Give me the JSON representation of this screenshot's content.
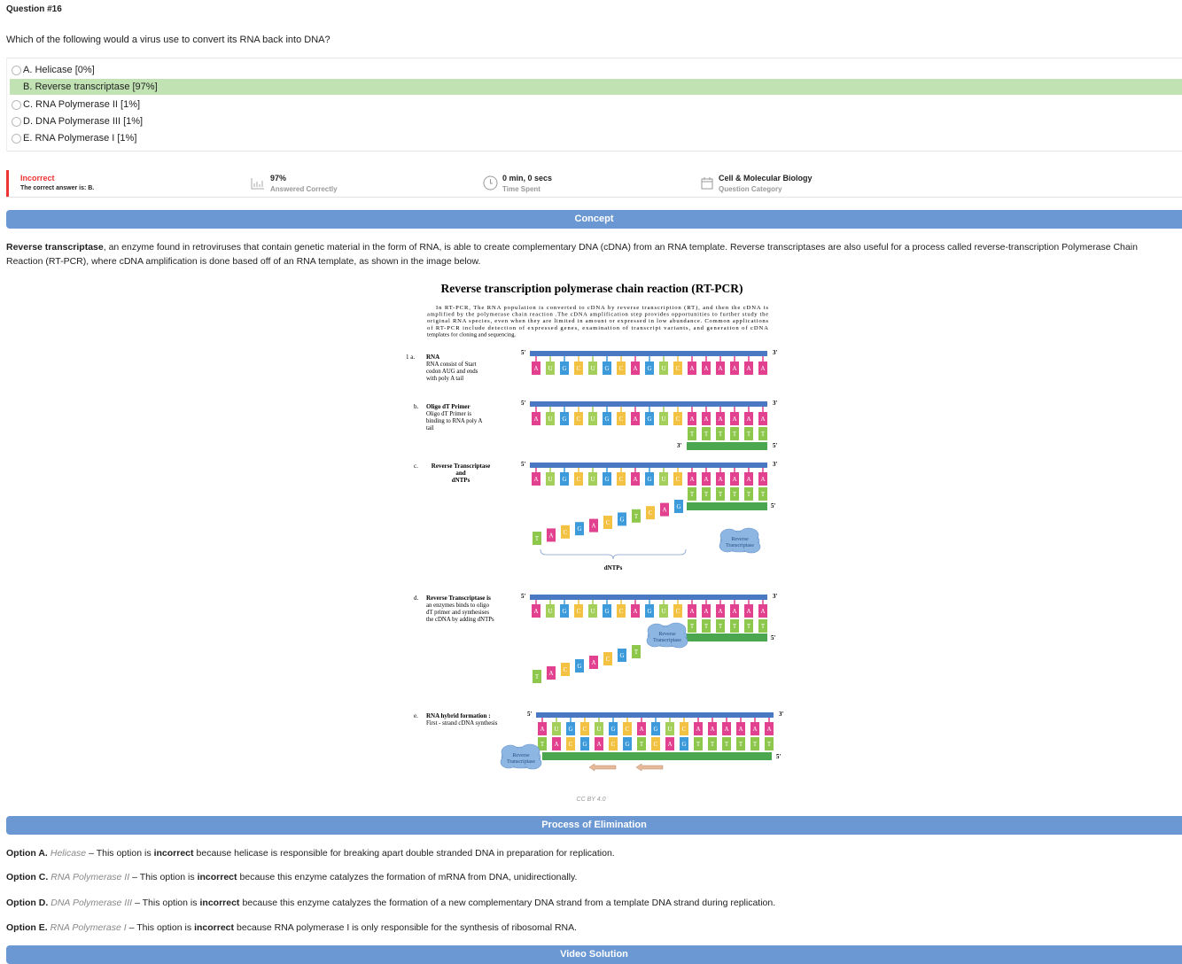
{
  "question": {
    "number": "Question #16",
    "text": "Which of the following would a virus use to convert its RNA back into DNA?",
    "options": [
      {
        "text": "A. Helicase [0%]",
        "correct": false
      },
      {
        "text": "B. Reverse transcriptase [97%]",
        "correct": true
      },
      {
        "text": "C. RNA Polymerase II [1%]",
        "correct": false
      },
      {
        "text": "D. DNA Polymerase III [1%]",
        "correct": false
      },
      {
        "text": "E. RNA Polymerase I [1%]",
        "correct": false
      }
    ]
  },
  "stats": {
    "status": "Incorrect",
    "answer": "The correct answer is: B.",
    "percent": "97%",
    "percent_label": "Answered Correctly",
    "time": "0 min, 0 secs",
    "time_label": "Time Spent",
    "category": "Cell & Molecular Biology",
    "category_label": "Question Category"
  },
  "concept": {
    "heading": "Concept",
    "lead": "Reverse transcriptase",
    "text": ", an enzyme found in retroviruses that contain genetic material in the form of RNA, is able to create complementary DNA (cDNA) from an RNA template. Reverse transcriptases are also useful for a process called reverse-transcription Polymerase Chain Reaction (RT-PCR), where cDNA amplification is done based off of an RNA template, as shown in the image below."
  },
  "figure": {
    "title": "Reverse transcription polymerase chain reaction (RT-PCR)",
    "paragraph": [
      "In RT-PCR,  The RNA population is converted to cDNA by reverse transcription (RT), and then the cDNA is",
      "amplified by the polymerase chain reaction .The cDNA amplification step provides opportunities to further study the",
      "original RNA species, even when they are limited in amount or expressed in low abundance. Common applications",
      "of RT-PCR include detection of  expressed genes, examination of transcript variants, and generation of cDNA",
      "templates for cloning and sequencing."
    ],
    "steps": [
      {
        "num": "1 a.",
        "heading": [
          "RNA"
        ],
        "body": [
          "RNA consist of Start",
          "codon AUG and ends",
          "with poly A tail"
        ]
      },
      {
        "num": "b.",
        "heading": [
          "Oligo dT Primer"
        ],
        "body": [
          "Oligo dT Primer is",
          "binding to RNA poly A",
          "tail"
        ]
      },
      {
        "num": "c.",
        "heading": [
          "Reverse Transcriptase",
          "and",
          "dNTPs"
        ]
      },
      {
        "num": "d.",
        "heading": [
          "Reverse Transcriptase is"
        ],
        "body": [
          "an enzymes binds to oligo",
          "dT primer and synthesises",
          "the cDNA by adding dNTPs"
        ]
      },
      {
        "num": "e.",
        "heading": [
          "RNA hybrid formation :"
        ],
        "body": [
          "First - strand cDNA synthesis"
        ]
      }
    ],
    "five_prime": "5'",
    "three_prime": "3'",
    "rna": [
      "A",
      "U",
      "G",
      "C",
      "U",
      "G",
      "C",
      "A",
      "G",
      "U",
      "C",
      "A",
      "A",
      "A",
      "A",
      "A",
      "A"
    ],
    "primer": [
      "T",
      "T",
      "T",
      "T",
      "T",
      "T"
    ],
    "cdna": [
      "T",
      "A",
      "C",
      "G",
      "A",
      "C",
      "G",
      "T",
      "C",
      "A",
      "G"
    ],
    "dntps_label": "dNTPs",
    "enzyme": [
      "Reverse",
      "Transcriptase"
    ],
    "colors": {
      "A": "#e2418f",
      "U": "#a3cf5a",
      "G": "#3d9bdc",
      "C": "#f3c243",
      "T": "#8dc74c"
    },
    "caption": "CC BY 4.0"
  },
  "elimination": {
    "heading": "Process of Elimination",
    "items": [
      {
        "label": "Option A.",
        "name": "Helicase",
        "before": "– This option is",
        "emphasis": "incorrect",
        "after": "because helicase is responsible for breaking apart double stranded DNA in preparation for replication."
      },
      {
        "label": "Option C.",
        "name": "RNA Polymerase II",
        "before": "– This option is",
        "emphasis": "incorrect",
        "after": "because this enzyme catalyzes the formation of mRNA from DNA, unidirectionally."
      },
      {
        "label": "Option D.",
        "name": "DNA Polymerase III",
        "before": "– This option is",
        "emphasis": "incorrect",
        "after": "because this enzyme catalyzes the formation of a new complementary DNA strand from a template DNA strand during replication."
      },
      {
        "label": "Option E.",
        "name": "RNA Polymerase I",
        "before": "– This option is",
        "emphasis": "incorrect",
        "after": "because RNA polymerase I is only responsible for the synthesis of ribosomal RNA."
      }
    ]
  },
  "video": {
    "heading": "Video Solution"
  }
}
